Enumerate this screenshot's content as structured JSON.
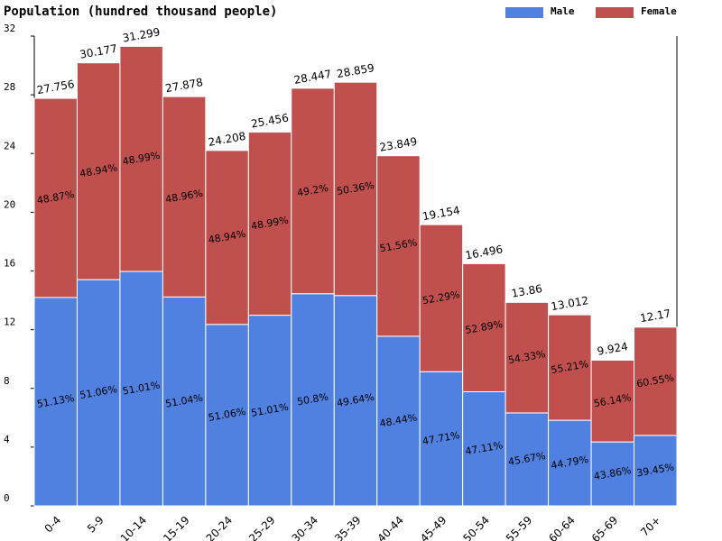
{
  "chart_data": {
    "type": "stacked-bar",
    "title": "Population (hundred thousand people)",
    "categories": [
      "0-4",
      "5-9",
      "10-14",
      "15-19",
      "20-24",
      "25-29",
      "30-34",
      "35-39",
      "40-44",
      "45-49",
      "50-54",
      "55-59",
      "60-64",
      "65-69",
      "70+"
    ],
    "series": [
      {
        "name": "Male",
        "color": "#5080e0",
        "values": [
          14.192,
          15.408,
          15.966,
          14.229,
          12.361,
          12.985,
          14.451,
          14.326,
          11.552,
          9.138,
          7.771,
          6.33,
          5.828,
          4.353,
          4.801
        ],
        "share_labels": [
          "51.13%",
          "51.06%",
          "51.01%",
          "51.04%",
          "51.06%",
          "51.01%",
          "50.8%",
          "49.64%",
          "48.44%",
          "47.71%",
          "47.11%",
          "45.67%",
          "44.79%",
          "43.86%",
          "39.45%"
        ]
      },
      {
        "name": "Female",
        "color": "#c0504d",
        "values": [
          13.564,
          14.769,
          15.333,
          13.649,
          11.847,
          12.471,
          13.996,
          14.533,
          12.297,
          10.016,
          8.725,
          7.53,
          7.184,
          5.571,
          7.369
        ],
        "share_labels": [
          "48.87%",
          "48.94%",
          "48.99%",
          "48.96%",
          "48.94%",
          "48.99%",
          "49.2%",
          "50.36%",
          "51.56%",
          "52.29%",
          "52.89%",
          "54.33%",
          "55.21%",
          "56.14%",
          "60.55%"
        ]
      }
    ],
    "totals": [
      27.756,
      30.177,
      31.299,
      27.878,
      24.208,
      25.456,
      28.447,
      28.859,
      23.849,
      19.154,
      16.496,
      13.86,
      13.012,
      9.924,
      12.17
    ],
    "ylim": [
      0,
      32
    ],
    "yticks": [
      0,
      4,
      8,
      12,
      16,
      20,
      24,
      28,
      32
    ],
    "legend": "top-right"
  }
}
